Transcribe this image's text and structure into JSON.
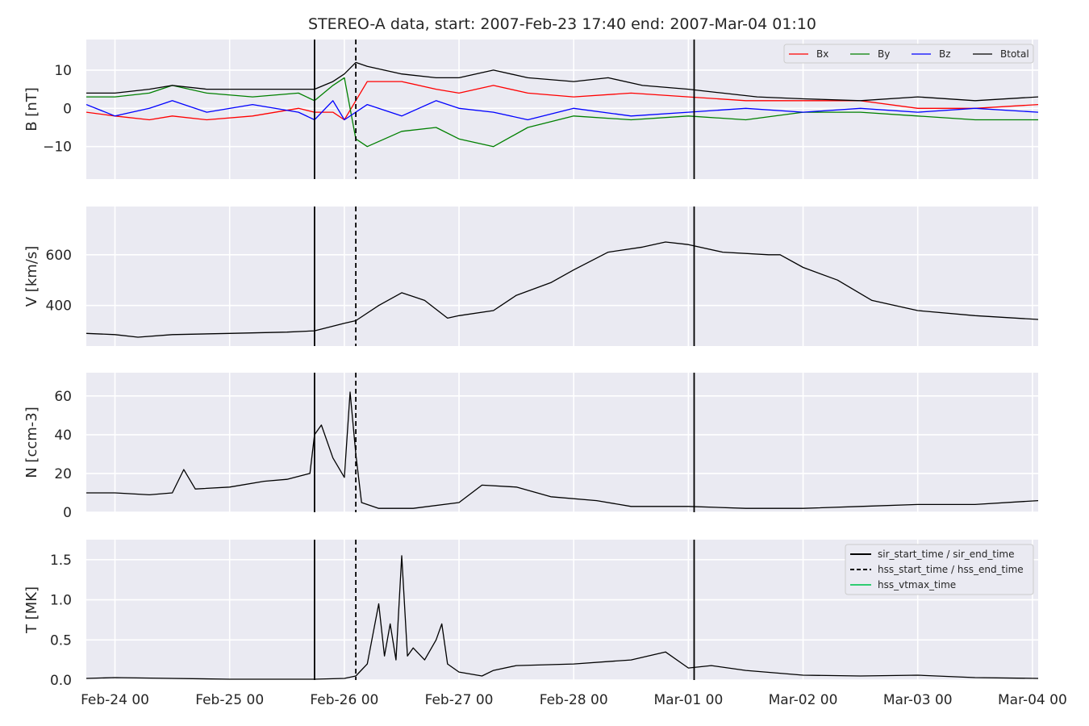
{
  "chart_data": {
    "type": "line",
    "title": "STEREO-A data, start: 2007-Feb-23 17:40  end: 2007-Mar-04 01:10",
    "x_tick_labels": [
      "Feb-24 00",
      "Feb-25 00",
      "Feb-26 00",
      "Feb-27 00",
      "Feb-28 00",
      "Mar-01 00",
      "Mar-02 00",
      "Mar-03 00",
      "Mar-04 00"
    ],
    "x_tick_days": [
      1,
      2,
      3,
      4,
      5,
      6,
      7,
      8,
      9
    ],
    "xlim_days": [
      0.75,
      9.05
    ],
    "x_unit_note": "days after 2007-Feb-23 00:00",
    "grid": true,
    "vertical_markers": [
      {
        "name": "sir_start_time / sir_end_time",
        "style": "solid",
        "x_days": [
          2.74,
          6.05
        ]
      },
      {
        "name": "hss_start_time / hss_end_time",
        "style": "dashed",
        "x_days": [
          3.1
        ]
      }
    ],
    "panels": [
      {
        "id": "B",
        "ylabel": "B [nT]",
        "ylim": [
          -18.5,
          18
        ],
        "yticks": [
          -10,
          0,
          10
        ],
        "ytick_labels": [
          "−10",
          "0",
          "10"
        ],
        "legend_position": "top-right",
        "series": [
          {
            "name": "Bx",
            "color": "#ff0000",
            "x": [
              0.75,
              1.0,
              1.3,
              1.5,
              1.8,
              2.2,
              2.6,
              2.74,
              2.9,
              3.0,
              3.2,
              3.5,
              3.8,
              4.0,
              4.3,
              4.6,
              5.0,
              5.5,
              6.0,
              6.5,
              7.0,
              7.5,
              8.0,
              8.5,
              9.05
            ],
            "y": [
              -1,
              -2,
              -3,
              -2,
              -3,
              -2,
              0,
              -1,
              -1,
              -3,
              7,
              7,
              5,
              4,
              6,
              4,
              3,
              4,
              3,
              2,
              2,
              2,
              0,
              0,
              1
            ]
          },
          {
            "name": "By",
            "color": "#008000",
            "x": [
              0.75,
              1.0,
              1.3,
              1.5,
              1.8,
              2.2,
              2.6,
              2.74,
              2.9,
              3.0,
              3.1,
              3.2,
              3.5,
              3.8,
              4.0,
              4.3,
              4.6,
              5.0,
              5.5,
              6.0,
              6.5,
              7.0,
              7.5,
              8.0,
              8.5,
              9.05
            ],
            "y": [
              3,
              3,
              4,
              6,
              4,
              3,
              4,
              2,
              6,
              8,
              -8,
              -10,
              -6,
              -5,
              -8,
              -10,
              -5,
              -2,
              -3,
              -2,
              -3,
              -1,
              -1,
              -2,
              -3,
              -3
            ]
          },
          {
            "name": "Bz",
            "color": "#0000ff",
            "x": [
              0.75,
              1.0,
              1.3,
              1.5,
              1.8,
              2.2,
              2.6,
              2.74,
              2.9,
              3.0,
              3.2,
              3.5,
              3.8,
              4.0,
              4.3,
              4.6,
              5.0,
              5.5,
              6.0,
              6.5,
              7.0,
              7.5,
              8.0,
              8.5,
              9.05
            ],
            "y": [
              1,
              -2,
              0,
              2,
              -1,
              1,
              -1,
              -3,
              2,
              -3,
              1,
              -2,
              2,
              0,
              -1,
              -3,
              0,
              -2,
              -1,
              0,
              -1,
              0,
              -1,
              0,
              -1
            ]
          },
          {
            "name": "Btotal",
            "color": "#000000",
            "x": [
              0.75,
              1.0,
              1.3,
              1.5,
              1.8,
              2.2,
              2.6,
              2.74,
              2.9,
              3.0,
              3.1,
              3.2,
              3.5,
              3.8,
              4.0,
              4.3,
              4.6,
              5.0,
              5.3,
              5.6,
              6.0,
              6.3,
              6.6,
              7.0,
              7.5,
              8.0,
              8.5,
              9.05
            ],
            "y": [
              4,
              4,
              5,
              6,
              5,
              5,
              5,
              5,
              7,
              9,
              12,
              11,
              9,
              8,
              8,
              10,
              8,
              7,
              8,
              6,
              5,
              4,
              3,
              2.5,
              2,
              3,
              2,
              3
            ]
          }
        ]
      },
      {
        "id": "V",
        "ylabel": "V [km/s]",
        "ylim": [
          240,
          790
        ],
        "yticks": [
          400,
          600
        ],
        "ytick_labels": [
          "400",
          "600"
        ],
        "series": [
          {
            "name": "V",
            "color": "#000000",
            "x": [
              0.75,
              1.0,
              1.2,
              1.5,
              2.0,
              2.5,
              2.74,
              3.0,
              3.1,
              3.3,
              3.5,
              3.7,
              3.9,
              4.0,
              4.3,
              4.5,
              4.8,
              5.0,
              5.3,
              5.6,
              5.8,
              6.0,
              6.3,
              6.7,
              6.8,
              7.0,
              7.3,
              7.6,
              8.0,
              8.5,
              9.05
            ],
            "y": [
              290,
              285,
              275,
              285,
              290,
              295,
              300,
              330,
              340,
              400,
              450,
              420,
              350,
              360,
              380,
              440,
              490,
              540,
              610,
              630,
              650,
              640,
              610,
              600,
              600,
              550,
              500,
              420,
              380,
              360,
              345
            ]
          }
        ]
      },
      {
        "id": "N",
        "ylabel": "N [ccm-3]",
        "ylim": [
          0,
          72
        ],
        "yticks": [
          0,
          20,
          40,
          60
        ],
        "ytick_labels": [
          "0",
          "20",
          "40",
          "60"
        ],
        "series": [
          {
            "name": "N",
            "color": "#000000",
            "x": [
              0.75,
              1.0,
              1.3,
              1.5,
              1.6,
              1.7,
              2.0,
              2.3,
              2.5,
              2.7,
              2.74,
              2.8,
              2.9,
              3.0,
              3.05,
              3.1,
              3.15,
              3.3,
              3.6,
              4.0,
              4.2,
              4.5,
              4.8,
              5.2,
              5.5,
              6.0,
              6.5,
              7.0,
              7.5,
              8.0,
              8.5,
              9.05
            ],
            "y": [
              10,
              10,
              9,
              10,
              22,
              12,
              13,
              16,
              17,
              20,
              40,
              45,
              28,
              18,
              62,
              30,
              5,
              2,
              2,
              5,
              14,
              13,
              8,
              6,
              3,
              3,
              2,
              2,
              3,
              4,
              4,
              6
            ]
          }
        ]
      },
      {
        "id": "T",
        "ylabel": "T [MK]",
        "ylim": [
          0,
          1.75
        ],
        "yticks": [
          0,
          0.5,
          1.0,
          1.5
        ],
        "ytick_labels": [
          "0.0",
          "0.5",
          "1.0",
          "1.5"
        ],
        "legend_position": "top-right",
        "series": [
          {
            "name": "T",
            "color": "#000000",
            "x": [
              0.75,
              1.0,
              1.5,
              2.0,
              2.5,
              2.74,
              3.0,
              3.1,
              3.2,
              3.3,
              3.35,
              3.4,
              3.45,
              3.5,
              3.55,
              3.6,
              3.7,
              3.8,
              3.85,
              3.9,
              4.0,
              4.2,
              4.3,
              4.5,
              5.0,
              5.5,
              5.8,
              6.0,
              6.2,
              6.5,
              7.0,
              7.5,
              8.0,
              8.5,
              9.05
            ],
            "y": [
              0.02,
              0.03,
              0.02,
              0.01,
              0.01,
              0.01,
              0.02,
              0.05,
              0.2,
              0.95,
              0.3,
              0.7,
              0.25,
              1.55,
              0.3,
              0.4,
              0.25,
              0.5,
              0.7,
              0.2,
              0.1,
              0.05,
              0.12,
              0.18,
              0.2,
              0.25,
              0.35,
              0.15,
              0.18,
              0.12,
              0.06,
              0.05,
              0.06,
              0.03,
              0.02
            ]
          }
        ]
      }
    ],
    "legend_T": [
      {
        "label": "sir_start_time / sir_end_time",
        "color": "#000000",
        "style": "solid"
      },
      {
        "label": "hss_start_time / hss_end_time",
        "color": "#000000",
        "style": "dashed"
      },
      {
        "label": "hss_vtmax_time",
        "color": "#2ecc71",
        "style": "solid"
      }
    ]
  }
}
